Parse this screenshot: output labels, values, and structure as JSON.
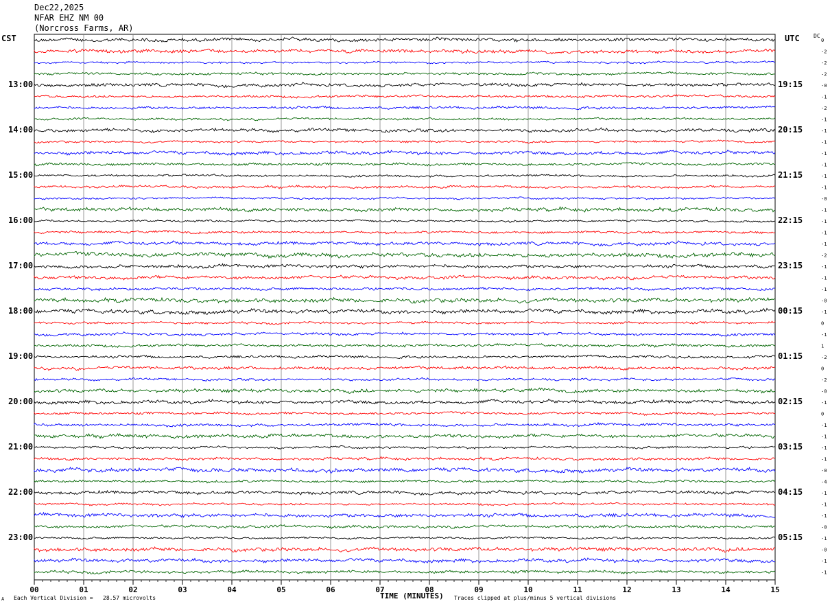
{
  "header": {
    "date": "Dec22,2025",
    "station": "NFAR EHZ NM 00",
    "location": "(Norcross Farms, AR)"
  },
  "left_tz": "CST",
  "right_tz": "UTC",
  "dc_label": "DC",
  "footer": {
    "scale_note": "Each Vertical Division =   28.57 microvolts",
    "clip_note": "Traces clipped at plus/minus 5 vertical divisions",
    "corner_mark": "A"
  },
  "chart_data": {
    "type": "line",
    "title": "",
    "xlabel": "TIME (MINUTES)",
    "ylabel": "",
    "xlim": [
      0,
      15
    ],
    "x_ticks": [
      "00",
      "01",
      "02",
      "03",
      "04",
      "05",
      "06",
      "07",
      "08",
      "09",
      "10",
      "11",
      "12",
      "13",
      "14",
      "15"
    ],
    "left_time_labels": [
      {
        "row": 4,
        "label": "13:00"
      },
      {
        "row": 8,
        "label": "14:00"
      },
      {
        "row": 12,
        "label": "15:00"
      },
      {
        "row": 16,
        "label": "16:00"
      },
      {
        "row": 20,
        "label": "17:00"
      },
      {
        "row": 24,
        "label": "18:00"
      },
      {
        "row": 28,
        "label": "19:00"
      },
      {
        "row": 32,
        "label": "20:00"
      },
      {
        "row": 36,
        "label": "21:00"
      },
      {
        "row": 40,
        "label": "22:00"
      },
      {
        "row": 44,
        "label": "23:00"
      }
    ],
    "right_time_labels": [
      {
        "row": 4,
        "label": "19:15"
      },
      {
        "row": 8,
        "label": "20:15"
      },
      {
        "row": 12,
        "label": "21:15"
      },
      {
        "row": 16,
        "label": "22:15"
      },
      {
        "row": 20,
        "label": "23:15"
      },
      {
        "row": 24,
        "label": "00:15"
      },
      {
        "row": 28,
        "label": "01:15"
      },
      {
        "row": 32,
        "label": "02:15"
      },
      {
        "row": 36,
        "label": "03:15"
      },
      {
        "row": 40,
        "label": "04:15"
      },
      {
        "row": 44,
        "label": "05:15"
      }
    ],
    "trace_colors": [
      "#000000",
      "#ff0000",
      "#0000ff",
      "#006400"
    ],
    "traces_count": 48,
    "dc_offsets": [
      "0",
      "-2",
      "-2",
      "-2",
      "-0",
      "-1",
      "-2",
      "-1",
      "-1",
      "-1",
      "-1",
      "-1",
      "-1",
      "-1",
      "-0",
      "-1",
      "-1",
      "-1",
      "-1",
      "-2",
      "-1",
      "-1",
      "-1",
      "-0",
      "-1",
      "0",
      "-1",
      "1",
      "-2",
      "0",
      "-2",
      "-0",
      "-1",
      "0",
      "-1",
      "-1",
      "-1",
      "-1",
      "-0",
      "-4",
      "-1",
      "-1",
      "-1",
      "-0",
      "-1",
      "-0",
      "-1",
      "-1"
    ]
  }
}
